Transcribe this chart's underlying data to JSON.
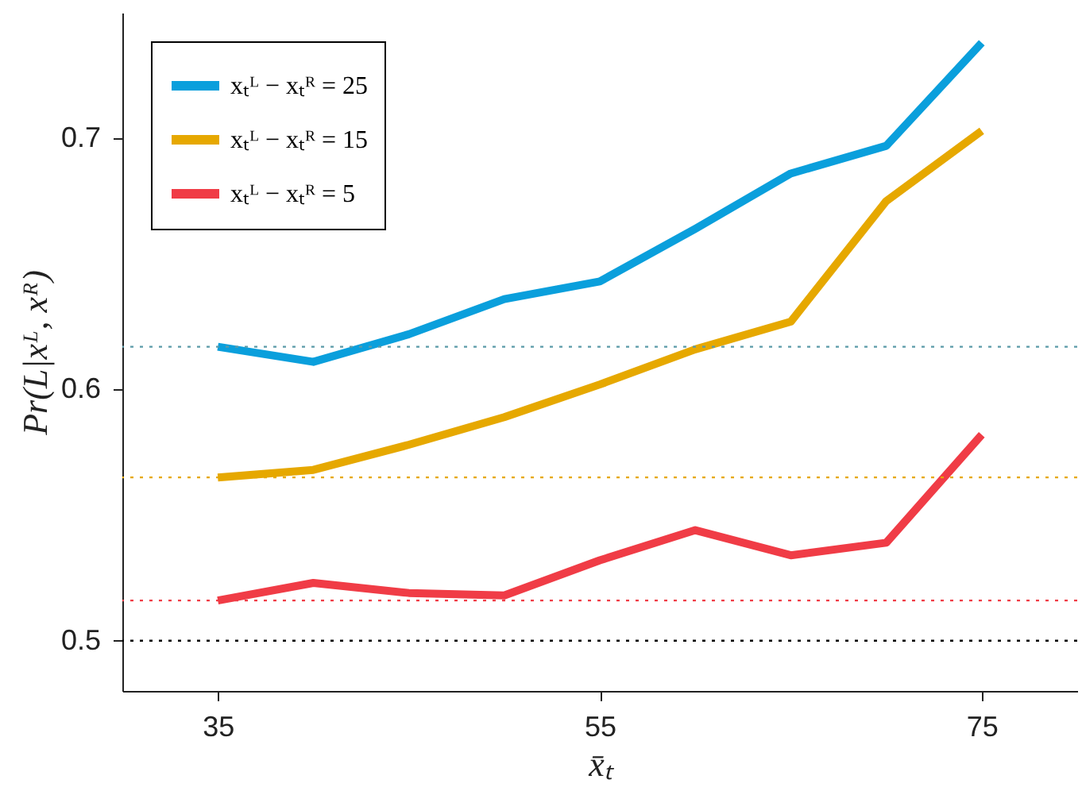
{
  "chart_data": {
    "type": "line",
    "xlabel": "x̄ₜ",
    "ylabel": "Pr(L|xᴸ, xᴿ)",
    "x": [
      35,
      40,
      45,
      50,
      55,
      60,
      65,
      70,
      75
    ],
    "series": [
      {
        "name": "xₜᴸ − xₜᴿ = 25",
        "color": "#0a9fdc",
        "values": [
          0.617,
          0.611,
          0.622,
          0.636,
          0.643,
          0.664,
          0.686,
          0.697,
          0.738
        ]
      },
      {
        "name": "xₜᴸ − xₜᴿ = 15",
        "color": "#e6a800",
        "values": [
          0.565,
          0.568,
          0.578,
          0.589,
          0.602,
          0.616,
          0.627,
          0.675,
          0.703
        ]
      },
      {
        "name": "xₜᴸ − xₜᴿ = 5",
        "color": "#f03c46",
        "values": [
          0.516,
          0.523,
          0.519,
          0.518,
          0.532,
          0.544,
          0.534,
          0.539,
          0.582
        ]
      }
    ],
    "xlim": [
      30,
      80
    ],
    "ylim": [
      0.48,
      0.75
    ],
    "xticks": [
      35,
      55,
      75
    ],
    "yticks": [
      0.5,
      0.6,
      0.7
    ],
    "ref_lines": [
      {
        "axis": "y",
        "value": 0.617,
        "color": "#5a9aa8",
        "line_style": "dotted"
      },
      {
        "axis": "y",
        "value": 0.565,
        "color": "#e6a800",
        "line_style": "dotted"
      },
      {
        "axis": "y",
        "value": 0.516,
        "color": "#f03c46",
        "line_style": "dotted"
      },
      {
        "axis": "y",
        "value": 0.5,
        "color": "#000000",
        "line_style": "dotted"
      }
    ],
    "legend": "top left",
    "grid": false
  }
}
